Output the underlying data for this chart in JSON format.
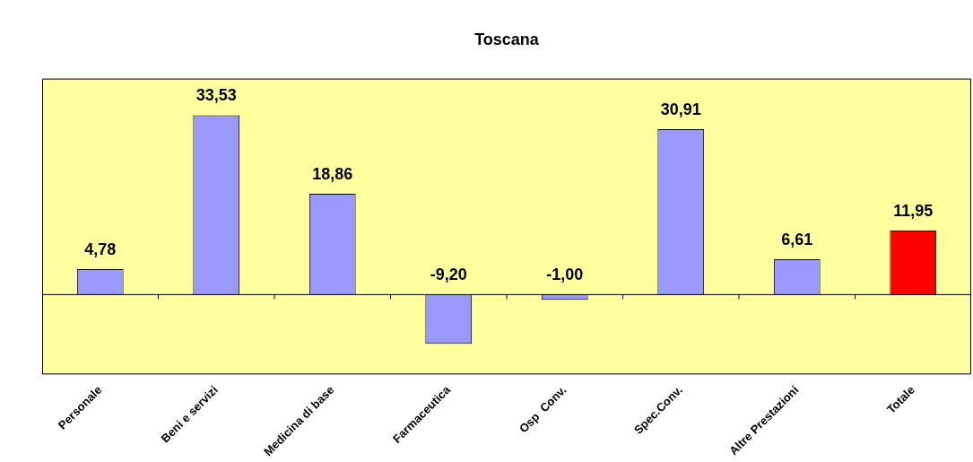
{
  "chart_data": {
    "type": "bar",
    "title": "Toscana",
    "categories": [
      "Personale",
      "Beni e servizi",
      "Medicina di base",
      "Farmaceutica",
      "Osp  Conv.",
      "Spec.Conv.",
      "Altre Prestazioni",
      "Totale"
    ],
    "values": [
      4.78,
      33.53,
      18.86,
      -9.2,
      -1.0,
      30.91,
      6.61,
      11.95
    ],
    "colors": [
      "#9999ff",
      "#9999ff",
      "#9999ff",
      "#9999ff",
      "#9999ff",
      "#9999ff",
      "#9999ff",
      "#ff0000"
    ],
    "value_labels": [
      "4,78",
      "33,53",
      "18,86",
      "-9,20",
      "-1,00",
      "30,91",
      "6,61",
      "11,95"
    ]
  }
}
